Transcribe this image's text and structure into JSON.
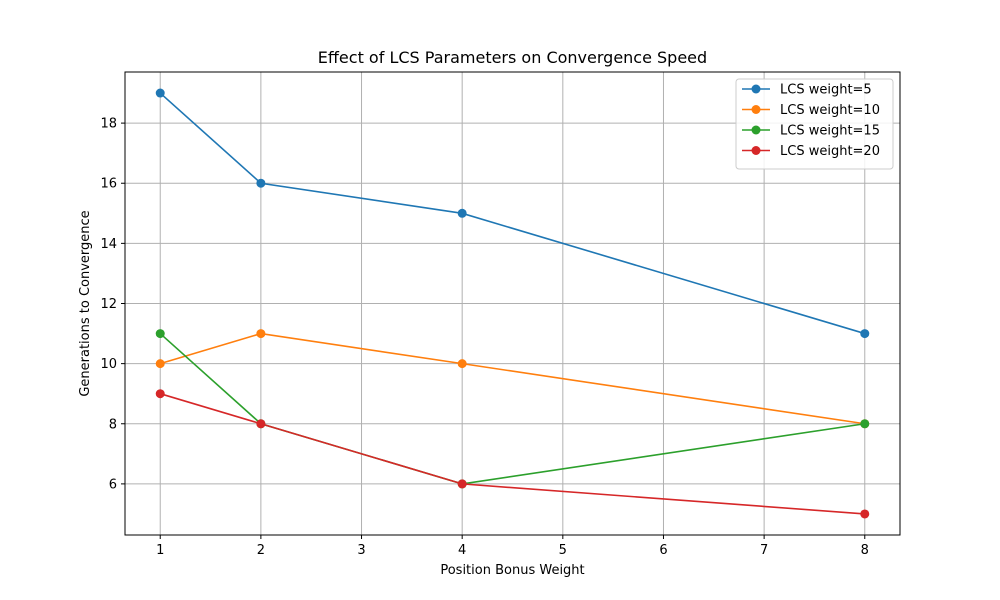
{
  "chart_data": {
    "type": "line",
    "title": "Effect of LCS Parameters on Convergence Speed",
    "xlabel": "Position Bonus Weight",
    "ylabel": "Generations to Convergence",
    "x": [
      1,
      2,
      4,
      8
    ],
    "xlim": [
      0.65,
      8.35
    ],
    "ylim": [
      4.3,
      19.7
    ],
    "xticks": [
      1,
      2,
      3,
      4,
      5,
      6,
      7,
      8
    ],
    "yticks": [
      6,
      8,
      10,
      12,
      14,
      16,
      18
    ],
    "grid": true,
    "legend_position": "top-right",
    "series": [
      {
        "name": "LCS weight=5",
        "color": "#1f77b4",
        "values": [
          19,
          16,
          15,
          11
        ]
      },
      {
        "name": "LCS weight=10",
        "color": "#ff7f0e",
        "values": [
          10,
          11,
          10,
          8
        ]
      },
      {
        "name": "LCS weight=15",
        "color": "#2ca02c",
        "values": [
          11,
          8,
          6,
          8
        ]
      },
      {
        "name": "LCS weight=20",
        "color": "#d62728",
        "values": [
          9,
          8,
          6,
          5
        ]
      }
    ]
  }
}
